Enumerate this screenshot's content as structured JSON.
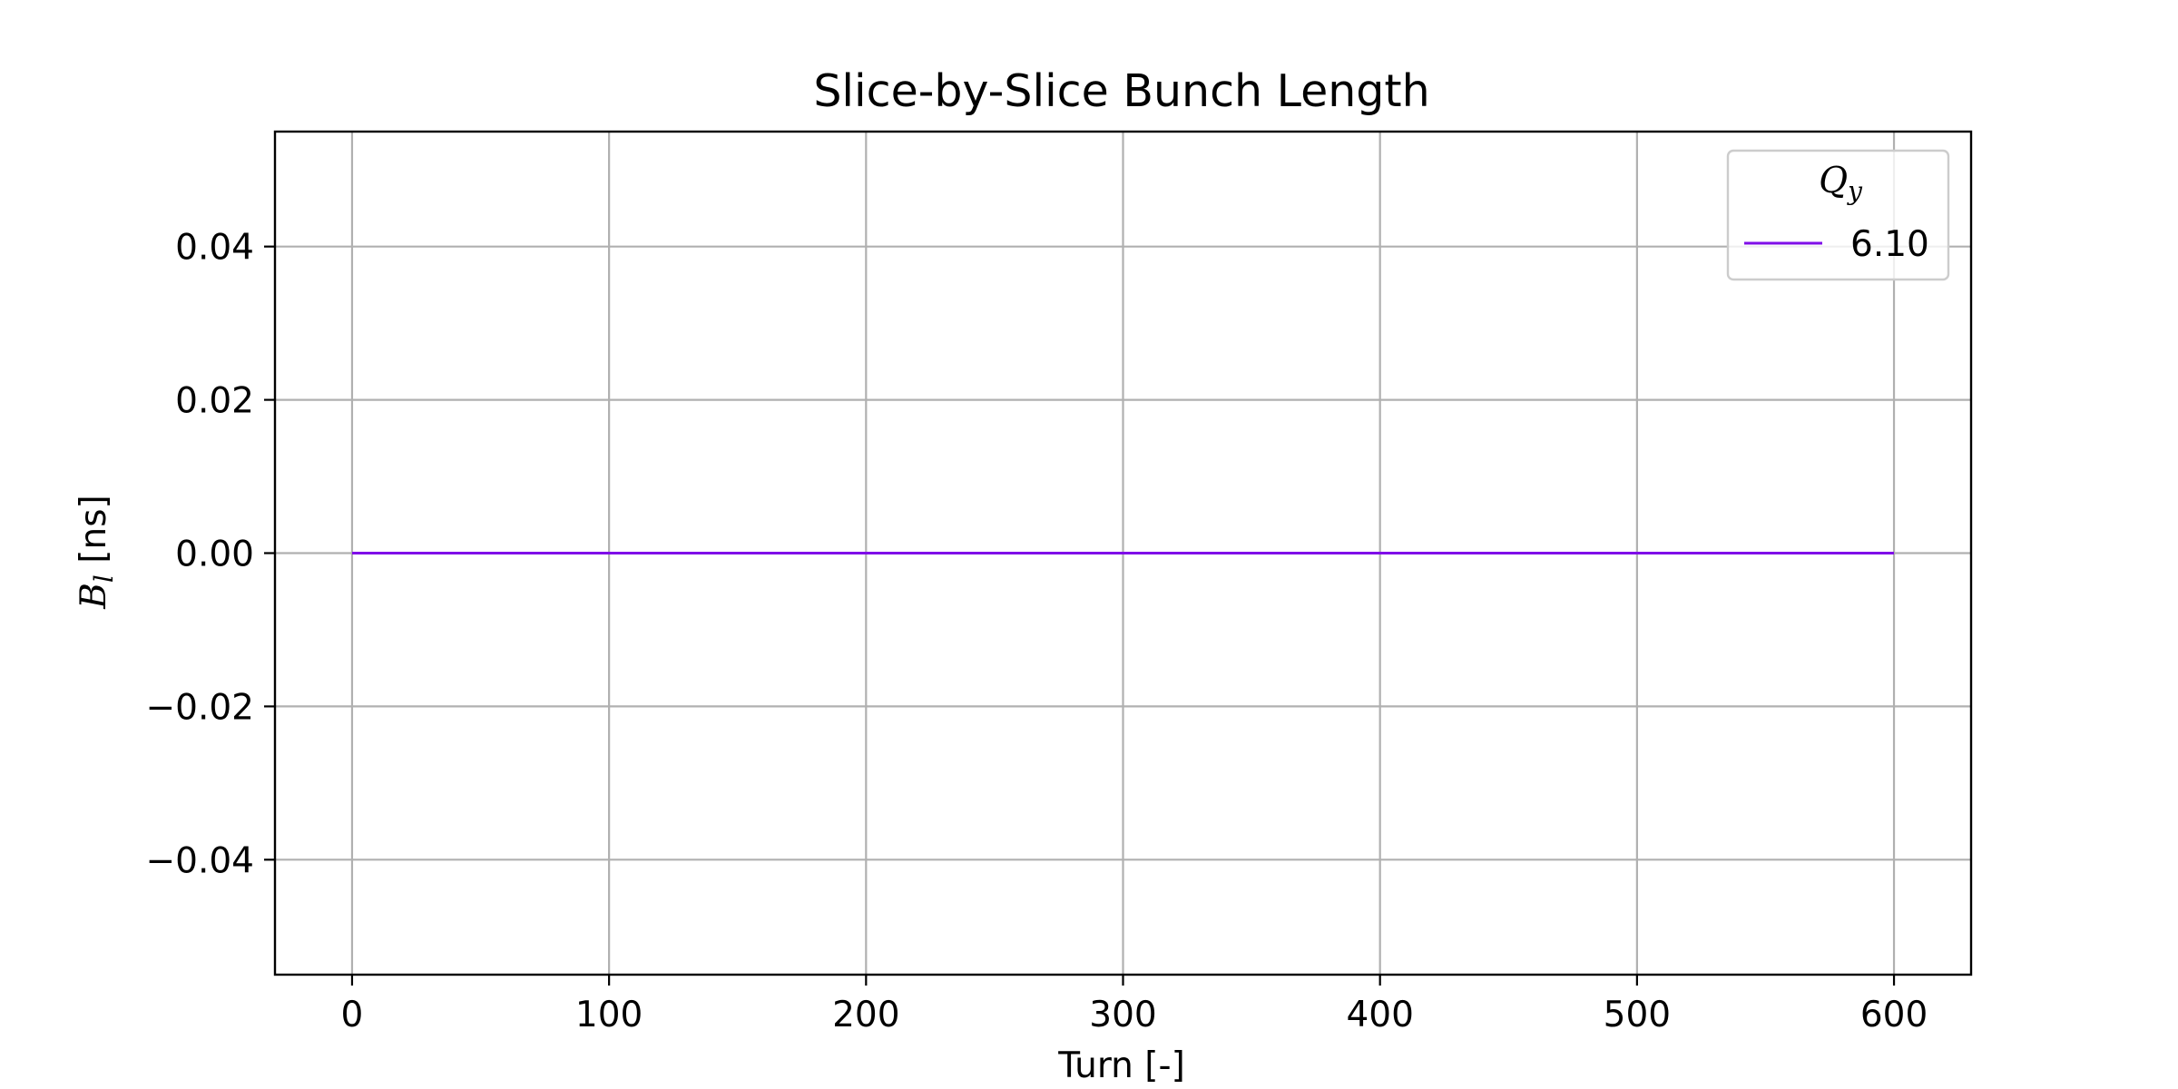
{
  "chart_data": {
    "type": "line",
    "title": "Slice-by-Slice Bunch Length",
    "xlabel": "Turn [-]",
    "ylabel": {
      "symbol": "B",
      "subscript": "l",
      "unit": " [ns]"
    },
    "xlim": [
      -30,
      630
    ],
    "ylim": [
      -0.055,
      0.055
    ],
    "xticks": [
      0,
      100,
      200,
      300,
      400,
      500,
      600
    ],
    "xtick_labels": [
      "0",
      "100",
      "200",
      "300",
      "400",
      "500",
      "600"
    ],
    "yticks": [
      -0.04,
      -0.02,
      0.0,
      0.02,
      0.04
    ],
    "ytick_labels": [
      "−0.04",
      "−0.02",
      "0.00",
      "0.02",
      "0.04"
    ],
    "grid": true,
    "legend": {
      "placement": "top-right",
      "title": {
        "symbol": "Q",
        "subscript": "y"
      }
    },
    "series": [
      {
        "name": "6.10",
        "color": "#7f0ee8",
        "x": [
          0,
          600
        ],
        "y": [
          0.0,
          0.0
        ]
      }
    ]
  }
}
